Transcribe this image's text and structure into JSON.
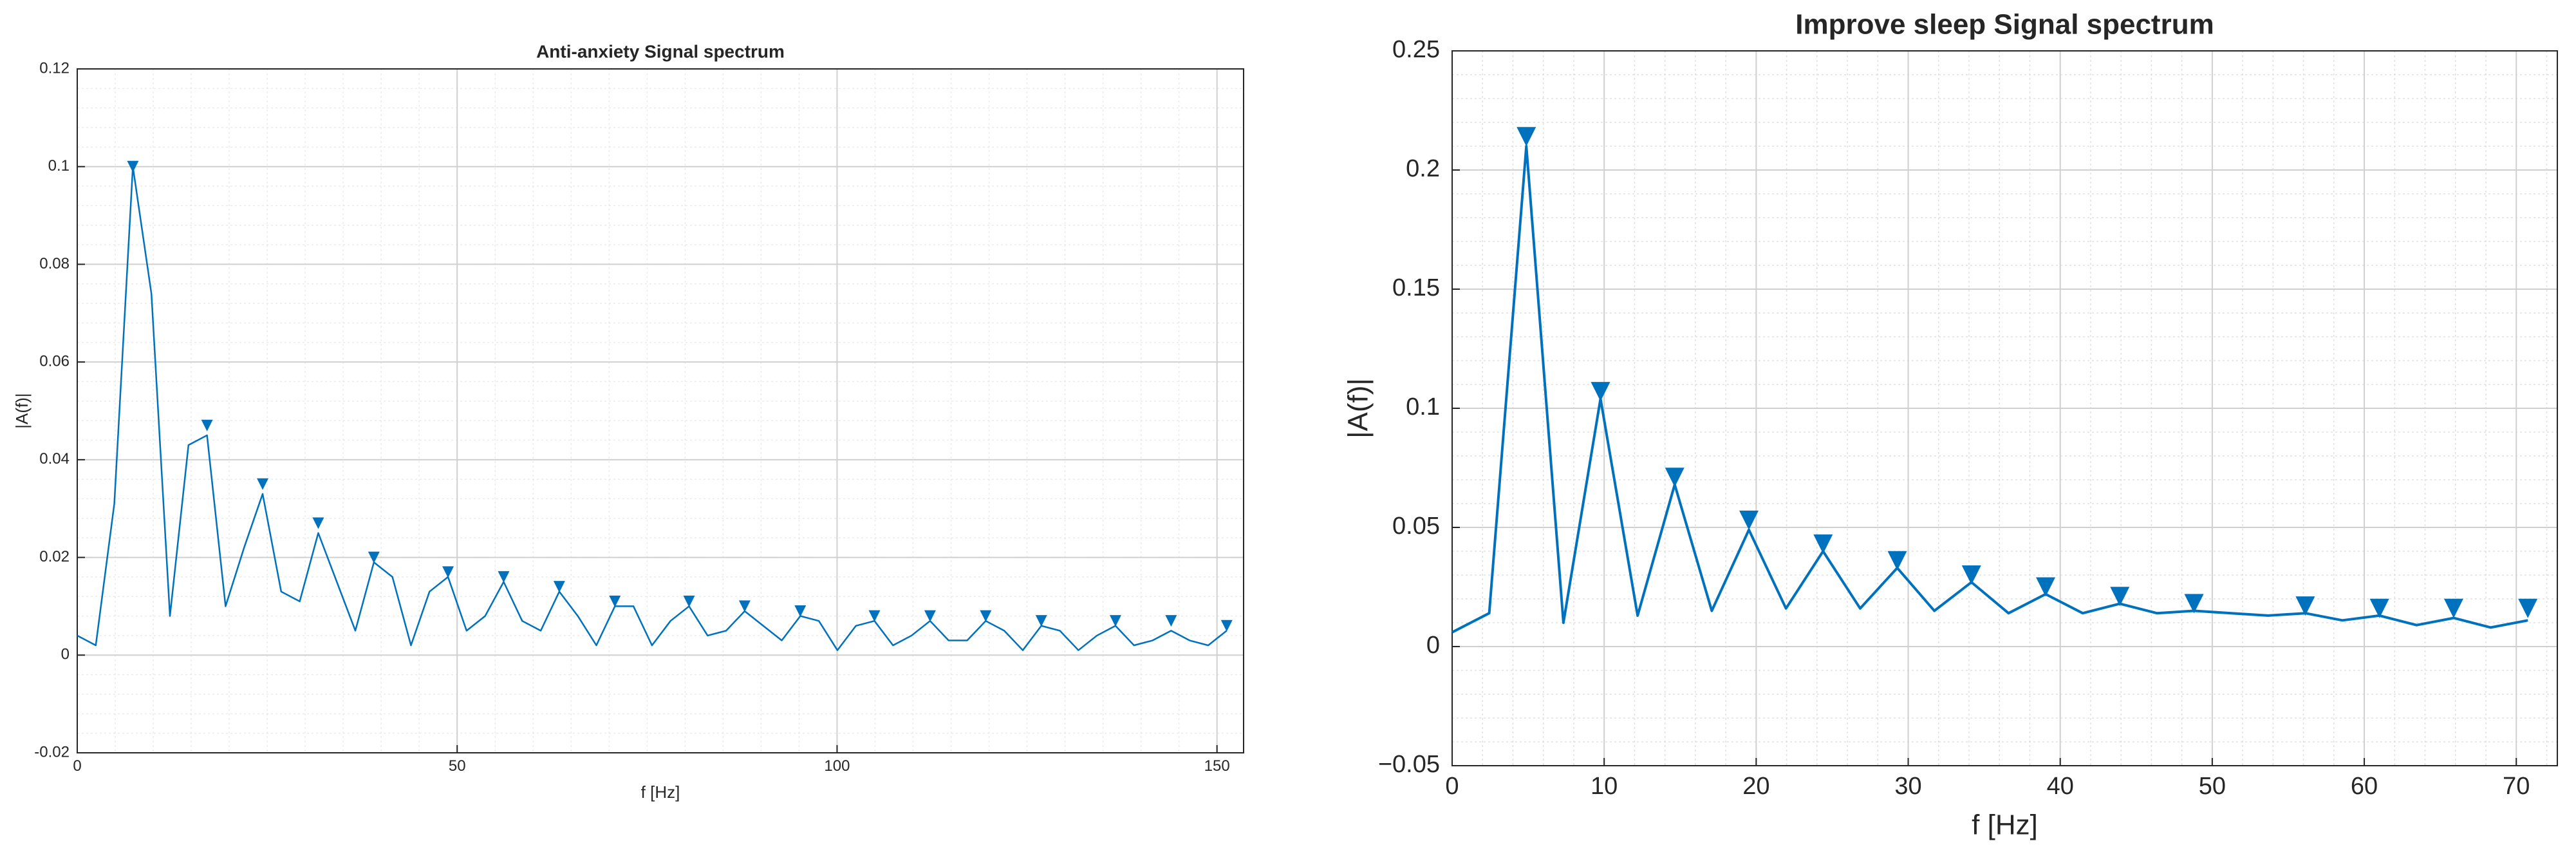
{
  "chart_data": [
    {
      "type": "line",
      "title": "Anti-anxiety Signal spectrum",
      "xlabel": "f [Hz]",
      "ylabel": "|A(f)|",
      "xlim": [
        0,
        153.5
      ],
      "xticks": [
        0,
        50,
        100,
        150
      ],
      "ylim": [
        -0.02,
        0.12
      ],
      "yticks": [
        -0.02,
        0,
        0.02,
        0.04,
        0.06,
        0.08,
        0.1,
        0.12
      ],
      "grid": true,
      "minor_divisions": [
        10,
        5
      ],
      "series": [
        {
          "color": "#0072bd",
          "style": "line",
          "x": [
            0,
            2.44,
            4.88,
            7.32,
            9.76,
            12.2,
            14.64,
            17.08,
            19.52,
            21.96,
            24.4,
            26.84,
            29.28,
            31.72,
            34.16,
            36.6,
            39.04,
            41.48,
            43.92,
            46.36,
            48.8,
            51.24,
            53.68,
            56.12,
            58.56,
            61.0,
            63.44,
            65.88,
            68.32,
            70.76,
            73.2,
            75.64,
            78.08,
            80.52,
            82.96,
            85.4,
            87.84,
            90.28,
            92.72,
            95.16,
            97.6,
            100.04,
            102.48,
            104.92,
            107.36,
            109.8,
            112.24,
            114.68,
            117.12,
            119.56,
            122.0,
            124.44,
            126.88,
            129.32,
            131.76,
            134.2,
            136.64,
            139.08,
            141.52,
            143.96,
            146.4,
            148.84,
            151.28
          ],
          "values": [
            0.004,
            0.002,
            0.031,
            0.1,
            0.074,
            0.008,
            0.043,
            0.045,
            0.01,
            0.022,
            0.033,
            0.013,
            0.011,
            0.025,
            0.015,
            0.005,
            0.019,
            0.016,
            0.002,
            0.013,
            0.016,
            0.005,
            0.008,
            0.015,
            0.007,
            0.005,
            0.013,
            0.008,
            0.002,
            0.01,
            0.01,
            0.002,
            0.007,
            0.01,
            0.004,
            0.005,
            0.009,
            0.006,
            0.003,
            0.008,
            0.007,
            0.001,
            0.006,
            0.007,
            0.002,
            0.004,
            0.007,
            0.003,
            0.003,
            0.007,
            0.005,
            0.001,
            0.006,
            0.005,
            0.001,
            0.004,
            0.006,
            0.002,
            0.003,
            0.005,
            0.003,
            0.002,
            0.005
          ]
        },
        {
          "color": "#0072bd",
          "style": "marker",
          "x": [
            7.32,
            17.08,
            24.4,
            31.72,
            39.04,
            48.8,
            56.12,
            63.44,
            70.76,
            80.52,
            87.84,
            95.16,
            104.92,
            112.24,
            119.56,
            126.88,
            136.64,
            143.96,
            151.28
          ],
          "values": [
            0.1,
            0.047,
            0.035,
            0.027,
            0.02,
            0.017,
            0.016,
            0.014,
            0.011,
            0.011,
            0.01,
            0.009,
            0.008,
            0.008,
            0.008,
            0.007,
            0.007,
            0.007,
            0.006
          ]
        }
      ]
    },
    {
      "type": "line",
      "title": "Improve sleep Signal spectrum",
      "xlabel": "f [Hz]",
      "ylabel": "|A(f)|",
      "xlim": [
        0,
        72.7
      ],
      "xticks": [
        0,
        10,
        20,
        30,
        40,
        50,
        60,
        70
      ],
      "ylim": [
        -0.05,
        0.25
      ],
      "yticks": [
        {
          "value": -0.05,
          "label": "−0.05"
        },
        0,
        0.05,
        0.1,
        0.15,
        0.2,
        0.25
      ],
      "grid": true,
      "minor_divisions": [
        5,
        5
      ],
      "series": [
        {
          "color": "#0072bd",
          "style": "line",
          "x": [
            0,
            2.44,
            4.88,
            7.32,
            9.76,
            12.2,
            14.64,
            17.08,
            19.52,
            21.96,
            24.4,
            26.84,
            29.28,
            31.72,
            34.16,
            36.6,
            39.04,
            41.48,
            43.92,
            46.36,
            48.8,
            51.24,
            53.68,
            56.12,
            58.56,
            61.0,
            63.44,
            65.88,
            68.32,
            70.76
          ],
          "values": [
            0.006,
            0.014,
            0.21,
            0.01,
            0.104,
            0.013,
            0.068,
            0.015,
            0.049,
            0.016,
            0.04,
            0.016,
            0.033,
            0.015,
            0.027,
            0.014,
            0.022,
            0.014,
            0.018,
            0.014,
            0.015,
            0.014,
            0.013,
            0.014,
            0.011,
            0.013,
            0.009,
            0.012,
            0.008,
            0.011
          ]
        },
        {
          "color": "#0072bd",
          "style": "marker",
          "x": [
            4.88,
            9.76,
            14.64,
            19.52,
            24.4,
            29.28,
            34.16,
            39.04,
            43.92,
            48.8,
            56.12,
            61.0,
            65.88,
            70.76
          ],
          "values": [
            0.214,
            0.107,
            0.071,
            0.053,
            0.043,
            0.036,
            0.03,
            0.025,
            0.021,
            0.018,
            0.017,
            0.016,
            0.016,
            0.016
          ]
        }
      ]
    }
  ]
}
